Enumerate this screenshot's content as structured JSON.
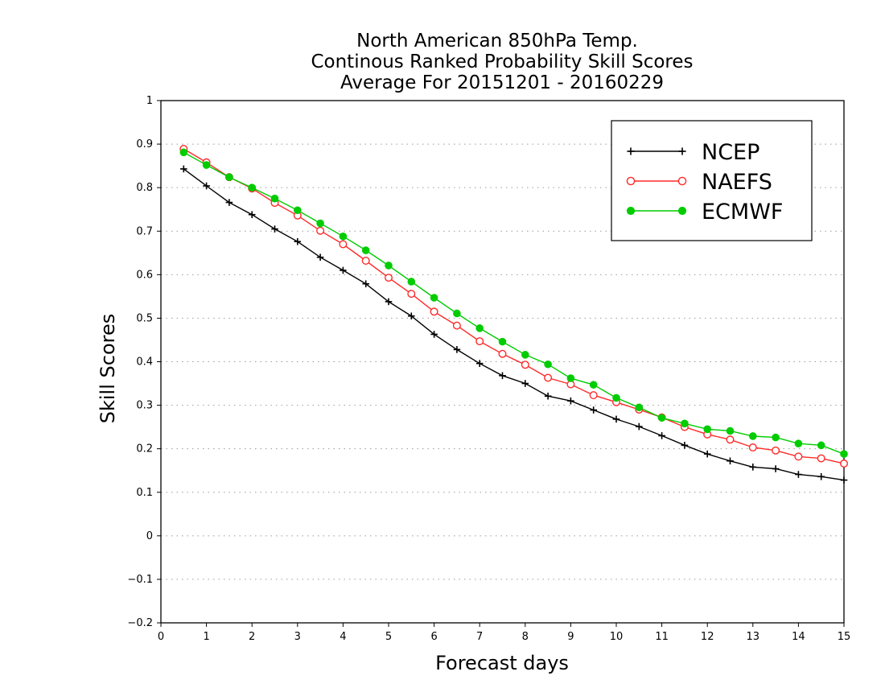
{
  "chart_data": {
    "type": "line",
    "title": [
      "North American 850hPa Temp.",
      "Continous Ranked Probability Skill Scores",
      "Average For 20151201 - 20160229"
    ],
    "xlabel": "Forecast days",
    "ylabel": "Skill Scores",
    "xlim": [
      0,
      15
    ],
    "ylim": [
      -0.2,
      1
    ],
    "xticks": [
      "0",
      "1",
      "2",
      "3",
      "4",
      "5",
      "6",
      "7",
      "8",
      "9",
      "10",
      "11",
      "12",
      "13",
      "14",
      "15"
    ],
    "yticks": [
      "-0.2",
      "-0.1",
      "0",
      "0.1",
      "0.2",
      "0.3",
      "0.4",
      "0.5",
      "0.6",
      "0.7",
      "0.8",
      "0.9",
      "1"
    ],
    "grid": "horizontal dotted",
    "legend_position": "top-right",
    "x": [
      0.5,
      1,
      1.5,
      2,
      2.5,
      3,
      3.5,
      4,
      4.5,
      5,
      5.5,
      6,
      6.5,
      7,
      7.5,
      8,
      8.5,
      9,
      9.5,
      10,
      10.5,
      11,
      11.5,
      12,
      12.5,
      13,
      13.5,
      14,
      14.5,
      15
    ],
    "series": [
      {
        "name": "NCEP",
        "color": "#000000",
        "marker": "plus",
        "values": [
          0.843,
          0.804,
          0.766,
          0.738,
          0.705,
          0.676,
          0.64,
          0.61,
          0.579,
          0.538,
          0.505,
          0.463,
          0.428,
          0.396,
          0.368,
          0.35,
          0.321,
          0.31,
          0.289,
          0.268,
          0.251,
          0.23,
          0.208,
          0.188,
          0.172,
          0.158,
          0.154,
          0.141,
          0.136,
          0.128
        ]
      },
      {
        "name": "NAEFS",
        "color": "#ff2a2a",
        "marker": "open-circle",
        "values": [
          0.889,
          0.858,
          0.824,
          0.798,
          0.765,
          0.736,
          0.701,
          0.67,
          0.632,
          0.593,
          0.556,
          0.515,
          0.483,
          0.447,
          0.418,
          0.393,
          0.363,
          0.348,
          0.323,
          0.307,
          0.29,
          0.272,
          0.25,
          0.233,
          0.221,
          0.203,
          0.196,
          0.182,
          0.178,
          0.166
        ]
      },
      {
        "name": "ECMWF",
        "color": "#00cc00",
        "marker": "filled-circle",
        "values": [
          0.881,
          0.852,
          0.824,
          0.8,
          0.775,
          0.748,
          0.718,
          0.688,
          0.656,
          0.621,
          0.584,
          0.547,
          0.511,
          0.477,
          0.446,
          0.416,
          0.394,
          0.362,
          0.347,
          0.317,
          0.295,
          0.271,
          0.258,
          0.245,
          0.241,
          0.229,
          0.226,
          0.212,
          0.208,
          0.188
        ]
      }
    ]
  }
}
